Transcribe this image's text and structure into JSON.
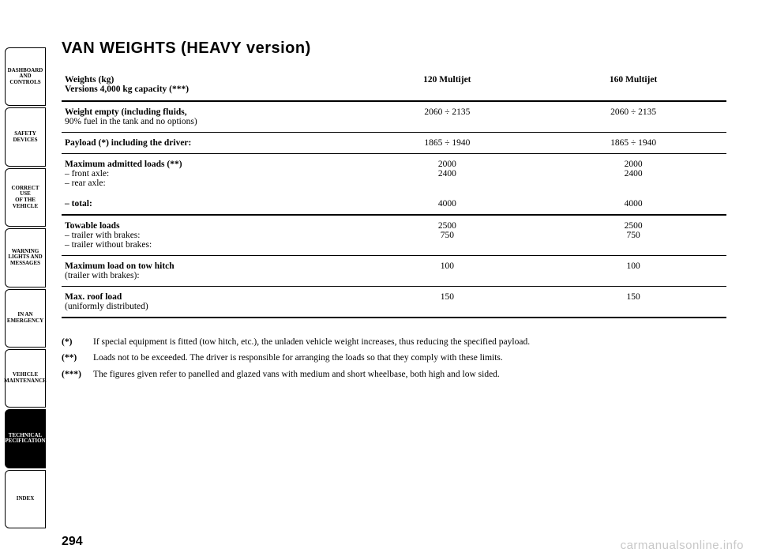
{
  "page_number": "294",
  "watermark": "carmanualsonline.info",
  "title": "VAN WEIGHTS (HEAVY   version)",
  "side_tabs": [
    "DASHBOARD\nAND CONTROLS",
    "SAFETY\nDEVICES",
    "CORRECT USE\nOF THE VEHICLE",
    "WARNING\nLIGHTS AND\nMESSAGES",
    "IN AN\nEMERGENCY",
    "VEHICLE\nMAINTENANCE",
    "TECHNICAL\nSPECIFICATIONS",
    "INDEX"
  ],
  "active_tab_index": 6,
  "table": {
    "header": {
      "label_line1": "Weights (kg)",
      "label_line2": "Versions 4,000 kg capacity (***)",
      "col1": "120 Multijet",
      "col2": "160 Multijet"
    },
    "rows": [
      {
        "label": "Weight empty (including fluids,",
        "sub": "90% fuel in the tank and no options)",
        "v1": "2060 ÷ 2135",
        "v2": "2060 ÷ 2135",
        "border": "1"
      },
      {
        "label": "Payload (*) including the driver:",
        "sub": "",
        "v1": "1865 ÷ 1940",
        "v2": "1865 ÷ 1940",
        "border": "1"
      },
      {
        "label": "Maximum admitted loads (**)",
        "sub": "– front axle:\n– rear axle:",
        "v1": "2000\n2400",
        "v2": "2000\n2400",
        "border": "0"
      },
      {
        "label": "– total:",
        "sub": "",
        "v1": "4000",
        "v2": "4000",
        "border": "2"
      },
      {
        "label": "Towable loads",
        "sub": "– trailer with brakes:\n– trailer without brakes:",
        "v1": "2500\n750",
        "v2": "2500\n750",
        "border": "1"
      },
      {
        "label": "Maximum load on tow hitch",
        "sub": "(trailer with brakes):",
        "v1": "100",
        "v2": "100",
        "border": "1"
      },
      {
        "label": "Max. roof load",
        "sub": "(uniformly distributed)",
        "v1": "150",
        "v2": "150",
        "border": "2"
      }
    ]
  },
  "footnotes": [
    {
      "mark": "(*)",
      "text": "If special equipment is fitted (tow hitch, etc.), the unladen vehicle weight increases, thus reducing the specified payload."
    },
    {
      "mark": "(**)",
      "text": "Loads not to be exceeded. The driver is responsible for arranging the loads so that they comply with these limits."
    },
    {
      "mark": "(***)",
      "text": "The figures given refer to panelled and glazed vans with medium and short wheelbase, both high and low sided."
    }
  ]
}
